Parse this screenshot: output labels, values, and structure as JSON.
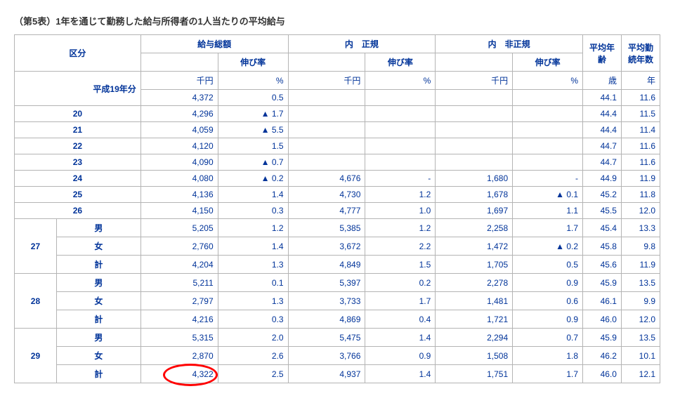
{
  "title": "（第5表）1年を通じて勤務した給与所得者の1人当たりの平均給与",
  "header": {
    "kubun": "区分",
    "kyuuyo_soukaku": "給与総額",
    "uchi_seiki": "内　正規",
    "uchi_hiseiki": "内　非正規",
    "heikin_nenrei": "平均年齢",
    "heikin_kinzoku": "平均勤続年数",
    "nobiritsu": "伸び率"
  },
  "units": {
    "senen": "千円",
    "pct": "%",
    "sai": "歳",
    "nen": "年"
  },
  "row_h19_label": "平成19年分",
  "row_h19": {
    "total": "4,372",
    "rate": "0.5",
    "age": "44.1",
    "kin": "11.6"
  },
  "row_20_label": "20",
  "row_20": {
    "total": "4,296",
    "rate": "▲ 1.7",
    "age": "44.4",
    "kin": "11.5"
  },
  "row_21_label": "21",
  "row_21": {
    "total": "4,059",
    "rate": "▲ 5.5",
    "age": "44.4",
    "kin": "11.4"
  },
  "row_22_label": "22",
  "row_22": {
    "total": "4,120",
    "rate": "1.5",
    "age": "44.7",
    "kin": "11.6"
  },
  "row_23_label": "23",
  "row_23": {
    "total": "4,090",
    "rate": "▲ 0.7",
    "age": "44.7",
    "kin": "11.6"
  },
  "row_24_label": "24",
  "row_24": {
    "total": "4,080",
    "rate": "▲ 0.2",
    "seiki": "4,676",
    "seiki_rate": "-",
    "hiseiki": "1,680",
    "hiseiki_rate": "-",
    "age": "44.9",
    "kin": "11.9"
  },
  "row_25_label": "25",
  "row_25": {
    "total": "4,136",
    "rate": "1.4",
    "seiki": "4,730",
    "seiki_rate": "1.2",
    "hiseiki": "1,678",
    "hiseiki_rate": "▲ 0.1",
    "age": "45.2",
    "kin": "11.8"
  },
  "row_26_label": "26",
  "row_26": {
    "total": "4,150",
    "rate": "0.3",
    "seiki": "4,777",
    "seiki_rate": "1.0",
    "hiseiki": "1,697",
    "hiseiki_rate": "1.1",
    "age": "45.5",
    "kin": "12.0"
  },
  "group_27_label": "27",
  "row_27m": {
    "label": "男",
    "total": "5,205",
    "rate": "1.2",
    "seiki": "5,385",
    "seiki_rate": "1.2",
    "hiseiki": "2,258",
    "hiseiki_rate": "1.7",
    "age": "45.4",
    "kin": "13.3"
  },
  "row_27f": {
    "label": "女",
    "total": "2,760",
    "rate": "1.4",
    "seiki": "3,672",
    "seiki_rate": "2.2",
    "hiseiki": "1,472",
    "hiseiki_rate": "▲ 0.2",
    "age": "45.8",
    "kin": "9.8"
  },
  "row_27t": {
    "label": "計",
    "total": "4,204",
    "rate": "1.3",
    "seiki": "4,849",
    "seiki_rate": "1.5",
    "hiseiki": "1,705",
    "hiseiki_rate": "0.5",
    "age": "45.6",
    "kin": "11.9"
  },
  "group_28_label": "28",
  "row_28m": {
    "label": "男",
    "total": "5,211",
    "rate": "0.1",
    "seiki": "5,397",
    "seiki_rate": "0.2",
    "hiseiki": "2,278",
    "hiseiki_rate": "0.9",
    "age": "45.9",
    "kin": "13.5"
  },
  "row_28f": {
    "label": "女",
    "total": "2,797",
    "rate": "1.3",
    "seiki": "3,733",
    "seiki_rate": "1.7",
    "hiseiki": "1,481",
    "hiseiki_rate": "0.6",
    "age": "46.1",
    "kin": "9.9"
  },
  "row_28t": {
    "label": "計",
    "total": "4,216",
    "rate": "0.3",
    "seiki": "4,869",
    "seiki_rate": "0.4",
    "hiseiki": "1,721",
    "hiseiki_rate": "0.9",
    "age": "46.0",
    "kin": "12.0"
  },
  "group_29_label": "29",
  "row_29m": {
    "label": "男",
    "total": "5,315",
    "rate": "2.0",
    "seiki": "5,475",
    "seiki_rate": "1.4",
    "hiseiki": "2,294",
    "hiseiki_rate": "0.7",
    "age": "45.9",
    "kin": "13.5"
  },
  "row_29f": {
    "label": "女",
    "total": "2,870",
    "rate": "2.6",
    "seiki": "3,766",
    "seiki_rate": "0.9",
    "hiseiki": "1,508",
    "hiseiki_rate": "1.8",
    "age": "46.2",
    "kin": "10.1"
  },
  "row_29t": {
    "label": "計",
    "total": "4,322",
    "rate": "2.5",
    "seiki": "4,937",
    "seiki_rate": "1.4",
    "hiseiki": "1,751",
    "hiseiki_rate": "1.7",
    "age": "46.0",
    "kin": "12.1"
  },
  "circle": {
    "color": "#ff0000"
  }
}
